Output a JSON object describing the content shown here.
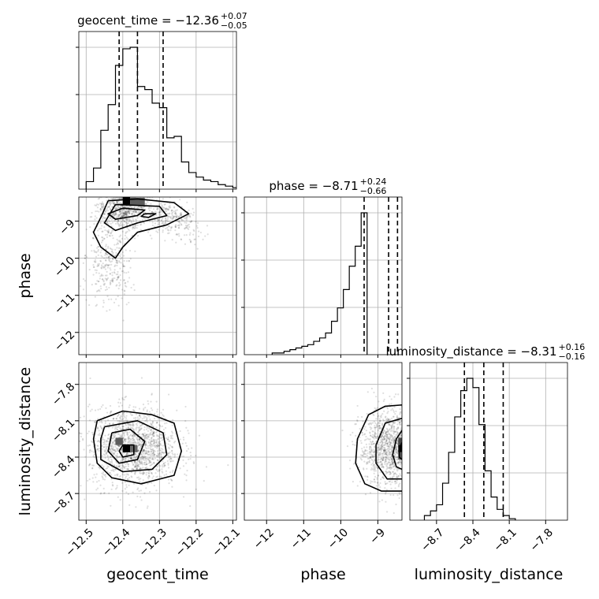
{
  "chart_data": {
    "type": "corner",
    "parameters": [
      "geocent_time",
      "phase",
      "luminosity_distance"
    ],
    "titles": [
      {
        "param": "geocent_time",
        "text": "geocent_time = −12.36",
        "plus": "+0.07",
        "minus": "−0.05"
      },
      {
        "param": "phase",
        "text": "phase = −8.71",
        "plus": "+0.24",
        "minus": "−0.66"
      },
      {
        "param": "luminosity_distance",
        "text": "luminosity_distance = −8.31",
        "plus": "+0.16",
        "minus": "−0.16"
      }
    ],
    "ranges": {
      "geocent_time": [
        -12.52,
        -12.09
      ],
      "phase": [
        -12.6,
        -8.35
      ],
      "luminosity_distance": [
        -8.92,
        -7.62
      ]
    },
    "ticks": {
      "geocent_time": {
        "values": [
          -12.5,
          -12.4,
          -12.3,
          -12.2,
          -12.1
        ],
        "labels": [
          "−12.5",
          "−12.4",
          "−12.3",
          "−12.2",
          "−12.1"
        ]
      },
      "phase": {
        "values": [
          -12,
          -11,
          -10,
          -9
        ],
        "labels": [
          "−12",
          "−11",
          "−10",
          "−9"
        ]
      },
      "luminosity_distance": {
        "values": [
          -8.7,
          -8.4,
          -8.1,
          -7.8
        ],
        "labels": [
          "−8.7",
          "−8.4",
          "−8.1",
          "−7.8"
        ]
      }
    },
    "quantiles": {
      "geocent_time": [
        -12.41,
        -12.36,
        -12.29
      ],
      "phase": [
        -9.37,
        -8.71,
        -8.47
      ],
      "luminosity_distance": [
        -8.47,
        -8.31,
        -8.15
      ]
    },
    "histograms": {
      "geocent_time": {
        "start": -12.5,
        "step": 0.02,
        "counts": [
          5,
          14,
          39,
          56,
          82,
          93,
          94,
          68,
          66,
          57,
          54,
          34,
          35,
          18,
          11,
          8,
          6,
          5,
          3,
          2,
          1
        ]
      },
      "phase": {
        "start": -11.85,
        "step": 0.16,
        "counts": [
          1,
          1,
          2,
          3,
          4,
          5,
          6,
          8,
          10,
          13,
          20,
          28,
          39,
          53,
          65,
          85
        ]
      },
      "luminosity_distance": {
        "start": -8.8,
        "step": 0.05,
        "counts": [
          3,
          6,
          10,
          24,
          44,
          67,
          84,
          92,
          86,
          62,
          32,
          15,
          7,
          3,
          1
        ]
      }
    },
    "contours": {
      "phase_vs_geocent_time": [
        [
          [
            -12.44,
            -8.45
          ],
          [
            -12.36,
            -8.4
          ],
          [
            -12.26,
            -8.5
          ],
          [
            -12.22,
            -8.8
          ],
          [
            -12.28,
            -9.1
          ],
          [
            -12.36,
            -9.3
          ],
          [
            -12.4,
            -9.7
          ],
          [
            -12.42,
            -10.0
          ],
          [
            -12.46,
            -9.7
          ],
          [
            -12.48,
            -9.3
          ],
          [
            -12.46,
            -8.9
          ],
          [
            -12.44,
            -8.45
          ]
        ],
        [
          [
            -12.42,
            -8.55
          ],
          [
            -12.3,
            -8.6
          ],
          [
            -12.28,
            -8.85
          ],
          [
            -12.36,
            -9.05
          ],
          [
            -12.42,
            -9.25
          ],
          [
            -12.45,
            -9.05
          ],
          [
            -12.42,
            -8.55
          ]
        ],
        [
          [
            -12.4,
            -8.65
          ],
          [
            -12.34,
            -8.7
          ],
          [
            -12.36,
            -8.85
          ],
          [
            -12.42,
            -8.95
          ],
          [
            -12.44,
            -8.8
          ],
          [
            -12.4,
            -8.65
          ]
        ],
        [
          [
            -12.34,
            -8.8
          ],
          [
            -12.31,
            -8.8
          ],
          [
            -12.33,
            -8.9
          ],
          [
            -12.35,
            -8.87
          ],
          [
            -12.34,
            -8.8
          ]
        ]
      ],
      "luminosity_distance_vs_geocent_time": [
        [
          [
            -12.47,
            -8.1
          ],
          [
            -12.4,
            -8.02
          ],
          [
            -12.32,
            -8.05
          ],
          [
            -12.26,
            -8.12
          ],
          [
            -12.24,
            -8.35
          ],
          [
            -12.26,
            -8.55
          ],
          [
            -12.35,
            -8.62
          ],
          [
            -12.43,
            -8.57
          ],
          [
            -12.47,
            -8.45
          ],
          [
            -12.48,
            -8.25
          ],
          [
            -12.47,
            -8.1
          ]
        ],
        [
          [
            -12.45,
            -8.15
          ],
          [
            -12.36,
            -8.1
          ],
          [
            -12.29,
            -8.2
          ],
          [
            -12.28,
            -8.38
          ],
          [
            -12.32,
            -8.5
          ],
          [
            -12.4,
            -8.52
          ],
          [
            -12.46,
            -8.42
          ],
          [
            -12.46,
            -8.25
          ],
          [
            -12.45,
            -8.15
          ]
        ],
        [
          [
            -12.43,
            -8.2
          ],
          [
            -12.38,
            -8.17
          ],
          [
            -12.34,
            -8.27
          ],
          [
            -12.36,
            -8.42
          ],
          [
            -12.41,
            -8.45
          ],
          [
            -12.44,
            -8.35
          ],
          [
            -12.43,
            -8.2
          ]
        ],
        [
          [
            -12.4,
            -8.3
          ],
          [
            -12.37,
            -8.3
          ],
          [
            -12.37,
            -8.38
          ],
          [
            -12.4,
            -8.4
          ],
          [
            -12.41,
            -8.35
          ],
          [
            -12.4,
            -8.3
          ]
        ]
      ],
      "luminosity_distance_vs_phase": [
        [
          [
            -8.35,
            -7.97
          ],
          [
            -8.8,
            -7.98
          ],
          [
            -9.25,
            -8.05
          ],
          [
            -9.55,
            -8.25
          ],
          [
            -9.6,
            -8.45
          ],
          [
            -9.35,
            -8.62
          ],
          [
            -8.9,
            -8.68
          ],
          [
            -8.35,
            -8.68
          ]
        ],
        [
          [
            -8.35,
            -8.08
          ],
          [
            -8.8,
            -8.12
          ],
          [
            -9.05,
            -8.3
          ],
          [
            -9.05,
            -8.45
          ],
          [
            -8.75,
            -8.58
          ],
          [
            -8.35,
            -8.58
          ]
        ],
        [
          [
            -8.35,
            -8.18
          ],
          [
            -8.5,
            -8.25
          ],
          [
            -8.6,
            -8.38
          ],
          [
            -8.5,
            -8.48
          ],
          [
            -8.35,
            -8.5
          ]
        ],
        [
          [
            -8.35,
            -8.28
          ],
          [
            -8.42,
            -8.33
          ],
          [
            -8.42,
            -8.4
          ],
          [
            -8.35,
            -8.42
          ]
        ]
      ]
    },
    "density_peaks": {
      "phase_vs_geocent_time": [
        {
          "x": -12.39,
          "y": -8.45,
          "w": 0.02,
          "h": 0.2,
          "level": 1.0
        },
        {
          "x": -12.36,
          "y": -8.47,
          "w": 0.04,
          "h": 0.2,
          "level": 0.6
        }
      ],
      "luminosity_distance_vs_geocent_time": [
        {
          "x": -12.39,
          "y": -8.33,
          "w": 0.02,
          "h": 0.06,
          "level": 1.0
        },
        {
          "x": -12.41,
          "y": -8.27,
          "w": 0.02,
          "h": 0.06,
          "level": 0.6
        },
        {
          "x": -12.37,
          "y": -8.33,
          "w": 0.02,
          "h": 0.06,
          "level": 0.55
        }
      ],
      "luminosity_distance_vs_phase": [
        {
          "x": -8.4,
          "y": -8.33,
          "w": 0.1,
          "h": 0.06,
          "level": 1.0
        },
        {
          "x": -8.4,
          "y": -8.27,
          "w": 0.1,
          "h": 0.06,
          "level": 0.7
        },
        {
          "x": -8.4,
          "y": -8.39,
          "w": 0.1,
          "h": 0.06,
          "level": 0.6
        }
      ]
    },
    "grid": true,
    "scatter_color": "#000000",
    "line_color": "#000000"
  }
}
